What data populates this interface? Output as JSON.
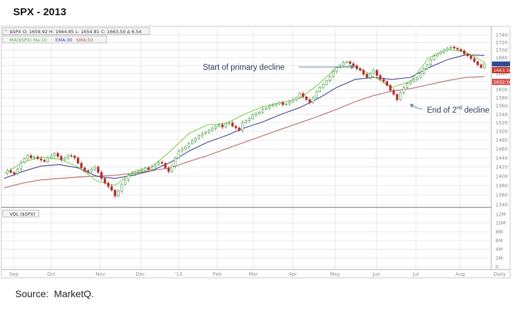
{
  "page": {
    "title": "SPX - 2013",
    "source": "Source:  MarketQ."
  },
  "legend": {
    "quote": "$SPX O: 1659.92 H: 1664.85 L: 1654.81 C: 1663.50 Δ 6.54",
    "ma_line": "MA($SPX) Ma:10",
    "ema": "EMA:30",
    "sma": "SMA:50",
    "vol_label": "VOL ($SPX)"
  },
  "annotations": {
    "primary_decline": "Start of primary decline",
    "second_decline_pre": "End of 2",
    "second_decline_sup": "nd",
    "second_decline_post": " decline"
  },
  "price_tags": {
    "current": "1663.50",
    "sma": "1632.16"
  },
  "colors": {
    "price": "#4a4a4a",
    "up": "#3a9a3a",
    "down": "#b03030",
    "ma10": "#7ccf4a",
    "ema30": "#3b3f8f",
    "sma50": "#c07a7a",
    "grid": "#d9d9d9",
    "tag_current": "#c0392b",
    "tag_sma": "#d9534f",
    "tag_ema": "#2e4a9a",
    "annotation_arrow": "#6b7fa8"
  },
  "chart_data": {
    "type": "line",
    "title": "SPX - 2013",
    "y_axis": {
      "ylim": [
        1340,
        1745
      ],
      "ticks": [
        1340,
        1360,
        1380,
        1400,
        1420,
        1440,
        1460,
        1480,
        1500,
        1520,
        1540,
        1560,
        1580,
        1600,
        1620,
        1640,
        1660,
        1680,
        1700,
        1720,
        1740
      ],
      "position": "right",
      "log_scale": true
    },
    "x_axis": {
      "tick_labels": [
        "Sep",
        "Oct",
        "Nov",
        "Dec",
        "'13",
        "Feb",
        "Mar",
        "Apr",
        "May",
        "Jun",
        "Jul",
        "Aug",
        "Daily"
      ]
    },
    "volume_axis": {
      "ticks": [
        "12M",
        "10M",
        "8M",
        "6M",
        "4M",
        "2M",
        "0"
      ]
    },
    "grid": true,
    "series": [
      {
        "name": "$SPX",
        "style": "candlestick",
        "months": [
          "Aug",
          "Sep",
          "Oct",
          "Nov",
          "Dec",
          "'13",
          "Feb",
          "Mar",
          "Apr",
          "May",
          "Jun",
          "Jul",
          "Aug"
        ],
        "values": [
          1407,
          1412,
          1408,
          1405,
          1415,
          1430,
          1438,
          1445,
          1440,
          1442,
          1438,
          1435,
          1432,
          1440,
          1445,
          1450,
          1443,
          1436,
          1440,
          1445,
          1444,
          1440,
          1428,
          1418,
          1412,
          1410,
          1415,
          1420,
          1408,
          1395,
          1385,
          1378,
          1370,
          1358,
          1368,
          1382,
          1392,
          1402,
          1405,
          1408,
          1410,
          1413,
          1418,
          1414,
          1420,
          1425,
          1430,
          1428,
          1418,
          1410,
          1422,
          1440,
          1455,
          1460,
          1465,
          1472,
          1478,
          1484,
          1490,
          1495,
          1498,
          1502,
          1507,
          1512,
          1515,
          1510,
          1518,
          1520,
          1512,
          1508,
          1502,
          1520,
          1525,
          1530,
          1538,
          1542,
          1545,
          1552,
          1555,
          1560,
          1562,
          1565,
          1568,
          1563,
          1565,
          1570,
          1575,
          1580,
          1590,
          1582,
          1575,
          1568,
          1580,
          1595,
          1605,
          1612,
          1622,
          1632,
          1645,
          1655,
          1660,
          1668,
          1670,
          1665,
          1660,
          1652,
          1648,
          1638,
          1630,
          1640,
          1648,
          1635,
          1625,
          1620,
          1610,
          1598,
          1588,
          1575,
          1592,
          1605,
          1615,
          1620,
          1625,
          1630,
          1640,
          1652,
          1662,
          1675,
          1685,
          1690,
          1695,
          1700,
          1705,
          1708,
          1705,
          1702,
          1698,
          1690,
          1685,
          1678,
          1670,
          1662,
          1655,
          1663.5
        ]
      },
      {
        "name": "MA($SPX) Ma:10",
        "values": [
          1405,
          1430,
          1442,
          1437,
          1420,
          1390,
          1380,
          1410,
          1420,
          1455,
          1495,
          1515,
          1518,
          1540,
          1558,
          1568,
          1578,
          1612,
          1655,
          1660,
          1632,
          1605,
          1620,
          1680,
          1702,
          1695,
          1668
        ]
      },
      {
        "name": "EMA:30",
        "values": [
          1395,
          1410,
          1422,
          1425,
          1418,
          1400,
          1395,
          1402,
          1412,
          1430,
          1455,
          1475,
          1490,
          1508,
          1522,
          1540,
          1556,
          1578,
          1605,
          1625,
          1630,
          1625,
          1630,
          1655,
          1675,
          1688,
          1686
        ]
      },
      {
        "name": "SMA:50",
        "values": [
          1375,
          1385,
          1392,
          1395,
          1398,
          1400,
          1402,
          1406,
          1412,
          1418,
          1432,
          1445,
          1460,
          1475,
          1490,
          1505,
          1520,
          1535,
          1552,
          1570,
          1585,
          1596,
          1602,
          1612,
          1622,
          1630,
          1632.16
        ]
      }
    ],
    "annotations": [
      {
        "text": "Start of primary decline",
        "month": "May"
      },
      {
        "text": "End of 2nd decline",
        "month": "Jun"
      }
    ],
    "last_values": {
      "close": 1663.5,
      "sma50": 1632.16
    }
  }
}
